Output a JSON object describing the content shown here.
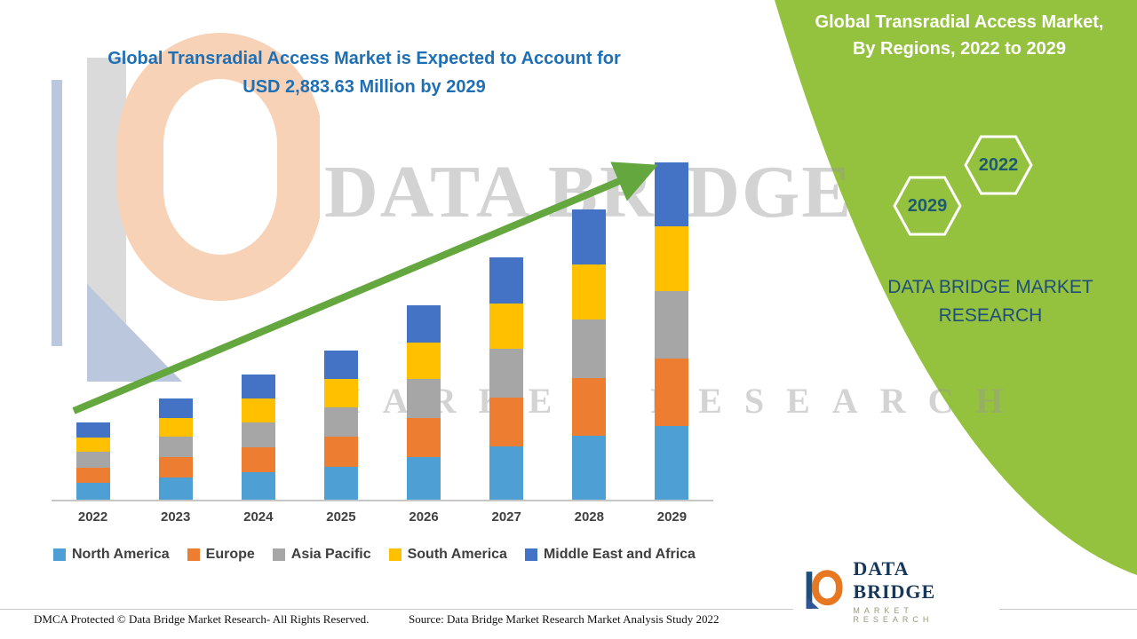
{
  "chart": {
    "title_line1": "Global Transradial Access Market is Expected to Account for",
    "title_line2": "USD 2,883.63 Million by 2029"
  },
  "right_panel": {
    "title_line1": "Global Transradial Access Market,",
    "title_line2": "By Regions, 2022 to 2029",
    "hex_front": "2029",
    "hex_back": "2022",
    "brand_line1": "DATA BRIDGE MARKET",
    "brand_line2": "RESEARCH"
  },
  "watermark": {
    "line1": "DATA BRIDGE",
    "line2": "MARKET RESEARCH"
  },
  "footer": {
    "dmca": "DMCA Protected © Data Bridge Market Research- All Rights Reserved.",
    "source": "Source: Data Bridge Market Research Market Analysis Study 2022",
    "logo_title": "DATA BRIDGE",
    "logo_subtitle": "MARKET RESEARCH"
  },
  "colors": {
    "panel_green": "#95C23E",
    "arrow_green": "#63A73E",
    "title_blue": "#1F6FB5",
    "brand_navy": "#1F4E79",
    "logo_orange": "#E87722"
  },
  "chart_data": {
    "type": "bar",
    "stacked": true,
    "title": "Global Transradial Access Market is Expected to Account for USD 2,883.63 Million by 2029",
    "unit": "USD Million",
    "categories": [
      "2022",
      "2023",
      "2024",
      "2025",
      "2026",
      "2027",
      "2028",
      "2029"
    ],
    "ymax": 2883.63,
    "ylim": [
      0,
      2883.63
    ],
    "legend_position": "bottom",
    "grid": false,
    "trend_arrow": true,
    "totals": [
      660,
      865,
      1070,
      1275,
      1660,
      2075,
      2480,
      2883.63
    ],
    "series": [
      {
        "name": "North America",
        "color": "#4E9FD4",
        "values": [
          145,
          190,
          235,
          281,
          365,
          457,
          546,
          634
        ]
      },
      {
        "name": "Europe",
        "color": "#ED7D31",
        "values": [
          132,
          173,
          214,
          255,
          332,
          415,
          496,
          577
        ]
      },
      {
        "name": "Asia Pacific",
        "color": "#A6A6A6",
        "values": [
          132,
          173,
          214,
          255,
          332,
          415,
          496,
          577
        ]
      },
      {
        "name": "South America",
        "color": "#FFC000",
        "values": [
          125,
          164,
          203,
          242,
          315,
          394,
          471,
          548
        ]
      },
      {
        "name": "Middle East and Africa",
        "color": "#4472C4",
        "values": [
          126,
          165,
          204,
          242,
          316,
          394,
          471,
          547.63
        ]
      }
    ]
  }
}
